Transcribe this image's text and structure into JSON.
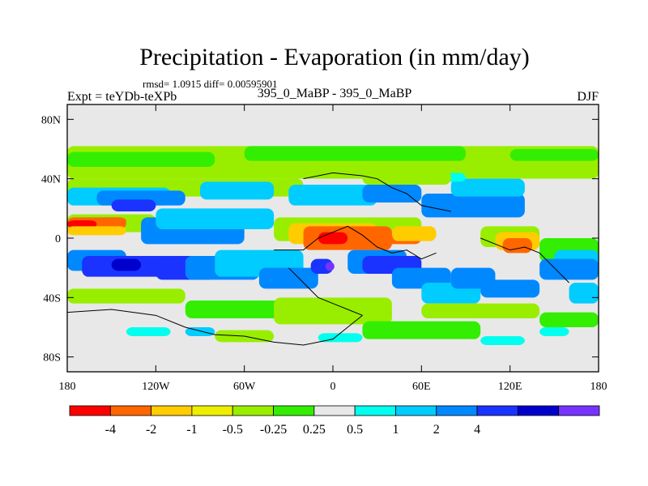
{
  "chart_data": {
    "type": "heatmap",
    "title": "Precipitation - Evaporation (in mm/day)",
    "stats": "rmsd= 1.0915 diff= 0.00595901",
    "subtitle": "395_0_MaBP - 395_0_MaBP",
    "left_label": "Expt = teYDb-teXPb",
    "right_label": "DJF",
    "x_ticks": [
      "180",
      "120W",
      "60W",
      "0",
      "60E",
      "120E",
      "180"
    ],
    "x_values": [
      -180,
      -120,
      -60,
      0,
      60,
      120,
      180
    ],
    "y_ticks": [
      "80N",
      "40N",
      "0",
      "40S",
      "80S"
    ],
    "y_values": [
      80,
      40,
      0,
      -40,
      -80
    ],
    "xlim": [
      -180,
      180
    ],
    "ylim": [
      -90,
      90
    ],
    "colorbar": {
      "labels": [
        "-4",
        "-2",
        "-1",
        "-0.5",
        "-0.25",
        "0.25",
        "0.5",
        "1",
        "2",
        "4"
      ],
      "colors": [
        "#ff0000",
        "#ff6600",
        "#ffcc00",
        "#eeee00",
        "#99ee00",
        "#33ee00",
        "#e8e8e8",
        "#00ffee",
        "#00ccff",
        "#0088ff",
        "#1a33ff",
        "#0000cc",
        "#7733ff"
      ]
    },
    "field_colors": {
      "neutral": "#e8e8e8",
      "light_green": "#99ee00",
      "green": "#33ee00",
      "yellow": "#ffcc00",
      "orange": "#ff6600",
      "red": "#ff0000",
      "cyan": "#00ffee",
      "sky": "#00ccff",
      "blue": "#0088ff",
      "royal": "#1a33ff",
      "navy": "#0000cc",
      "purple": "#7733ff"
    }
  }
}
